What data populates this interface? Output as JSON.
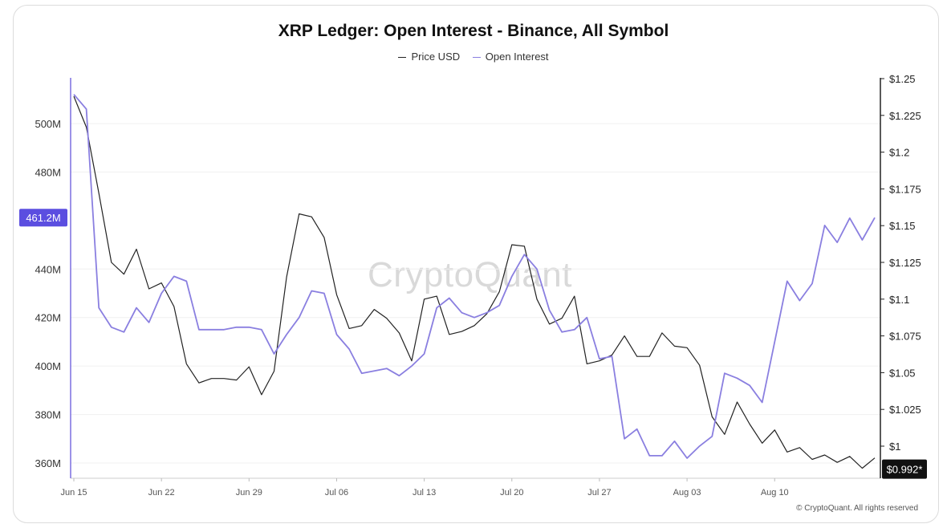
{
  "chart_data": {
    "type": "line",
    "title": "XRP Ledger: Open Interest - Binance, All Symbol",
    "legend_position": "top-center",
    "grid": true,
    "x_tick_labels": [
      "Jun 15",
      "Jun 22",
      "Jun 29",
      "Jul 06",
      "Jul 13",
      "Jul 20",
      "Jul 27",
      "Aug 03",
      "Aug 10"
    ],
    "x_range_days": [
      0,
      64
    ],
    "left_axis": {
      "ticks": [
        "500M",
        "480M",
        "440M",
        "420M",
        "400M",
        "380M",
        "360M"
      ],
      "ylim": [
        355,
        520
      ],
      "unit": "M",
      "current_value_label": "461.2M",
      "current_value": 461.2
    },
    "right_axis": {
      "ticks": [
        "$1.25",
        "$1.225",
        "$1.2",
        "$1.175",
        "$1.15",
        "$1.125",
        "$1.1",
        "$1.075",
        "$1.05",
        "$1.025",
        "$1"
      ],
      "ylim": [
        0.978,
        1.25
      ],
      "current_value_label": "$0.992*",
      "current_value": 0.992
    },
    "series": [
      {
        "name": "Price USD",
        "axis": "right",
        "color": "#222222",
        "x_day": [
          0,
          1,
          2,
          3,
          4,
          5,
          6,
          7,
          8,
          9,
          10,
          11,
          12,
          13,
          14,
          15,
          16,
          17,
          18,
          19,
          20,
          21,
          22,
          23,
          24,
          25,
          26,
          27,
          28,
          29,
          30,
          31,
          32,
          33,
          34,
          35,
          36,
          37,
          38,
          39,
          40,
          41,
          42,
          43,
          44,
          45,
          46,
          47,
          48,
          49,
          50,
          51,
          52,
          53,
          54,
          55,
          56,
          57,
          58,
          59,
          60,
          61,
          62,
          63,
          64
        ],
        "values": [
          1.238,
          1.217,
          1.172,
          1.125,
          1.117,
          1.134,
          1.107,
          1.111,
          1.095,
          1.056,
          1.043,
          1.046,
          1.046,
          1.045,
          1.054,
          1.035,
          1.051,
          1.115,
          1.158,
          1.156,
          1.142,
          1.103,
          1.08,
          1.082,
          1.093,
          1.087,
          1.077,
          1.058,
          1.1,
          1.102,
          1.076,
          1.078,
          1.082,
          1.09,
          1.105,
          1.137,
          1.136,
          1.1,
          1.083,
          1.087,
          1.102,
          1.056,
          1.058,
          1.062,
          1.075,
          1.061,
          1.061,
          1.077,
          1.068,
          1.067,
          1.055,
          1.02,
          1.008,
          1.03,
          1.015,
          1.002,
          1.011,
          0.996,
          0.999,
          0.991,
          0.994,
          0.989,
          0.993,
          0.985,
          0.992
        ]
      },
      {
        "name": "Open Interest",
        "axis": "left",
        "color": "#8a7fe0",
        "x_day": [
          0,
          1,
          2,
          3,
          4,
          5,
          6,
          7,
          8,
          9,
          10,
          11,
          12,
          13,
          14,
          15,
          16,
          17,
          18,
          19,
          20,
          21,
          22,
          23,
          24,
          25,
          26,
          27,
          28,
          29,
          30,
          31,
          32,
          33,
          34,
          35,
          36,
          37,
          38,
          39,
          40,
          41,
          42,
          43,
          44,
          45,
          46,
          47,
          48,
          49,
          50,
          51,
          52,
          53,
          54,
          55,
          56,
          57,
          58,
          59,
          60,
          61,
          62,
          63,
          64
        ],
        "values": [
          512,
          506,
          424,
          416,
          414,
          424,
          418,
          430,
          437,
          435,
          415,
          415,
          415,
          416,
          416,
          415,
          405,
          413,
          420,
          431,
          430,
          413,
          407,
          397,
          398,
          399,
          396,
          400,
          405,
          424,
          428,
          422,
          420,
          422,
          425,
          437,
          446,
          440,
          423,
          414,
          415,
          420,
          403,
          404,
          370,
          374,
          363,
          363,
          369,
          362,
          367,
          371,
          397,
          395,
          392,
          385,
          410,
          435,
          427,
          434,
          458,
          451,
          461,
          452,
          461.2
        ]
      }
    ]
  },
  "watermark": "CryptoQuant",
  "copyright": "© CryptoQuant. All rights reserved"
}
